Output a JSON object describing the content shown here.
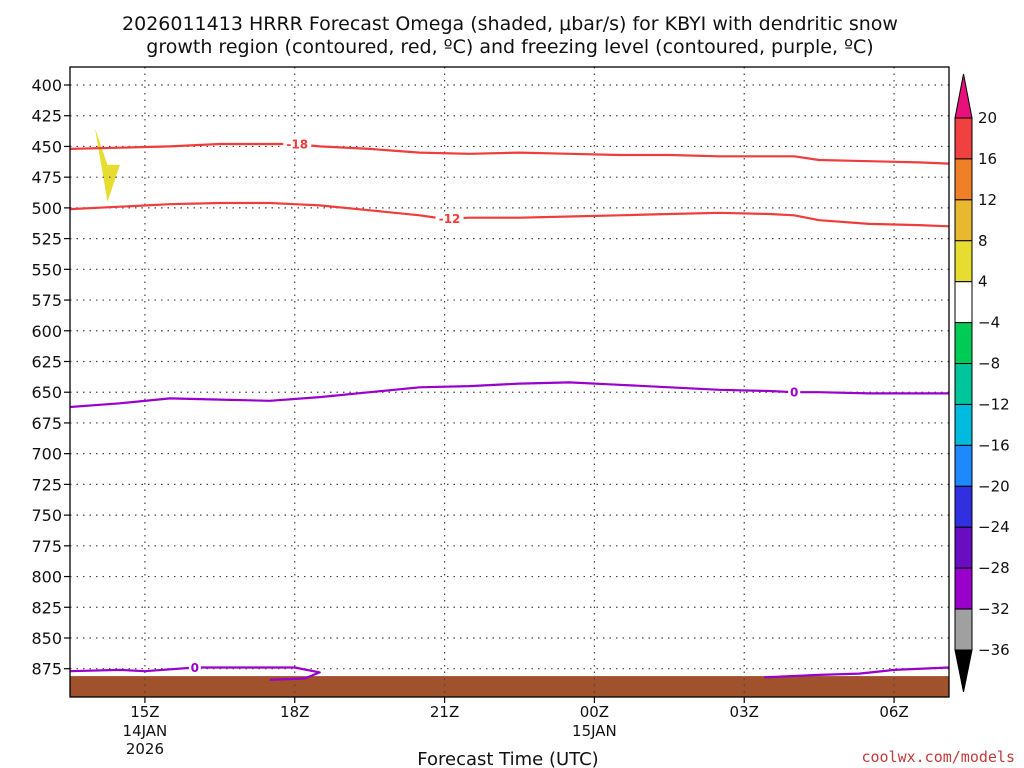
{
  "chart_data": {
    "type": "time-height cross section",
    "title_line1": "2026011413 HRRR Forecast Omega (shaded, μbar/s) for KBYI with dendritic snow",
    "title_line2": "growth region (contoured, red, ºC) and freezing level (contoured, purple, ºC)",
    "xlabel": "Forecast Time (UTC)",
    "credit": "coolwx.com/models",
    "xlim": [
      13.5,
      31.1
    ],
    "ylim": [
      400,
      885
    ],
    "y_ticks": [
      400,
      425,
      450,
      475,
      500,
      525,
      550,
      575,
      600,
      625,
      650,
      675,
      700,
      725,
      750,
      775,
      800,
      825,
      850,
      875
    ],
    "x_ticks": [
      {
        "hour": 15,
        "label": "15Z",
        "sub1": "14JAN",
        "sub2": "2026"
      },
      {
        "hour": 18,
        "label": "18Z",
        "sub1": "",
        "sub2": ""
      },
      {
        "hour": 21,
        "label": "21Z",
        "sub1": "",
        "sub2": ""
      },
      {
        "hour": 24,
        "label": "00Z",
        "sub1": "15JAN",
        "sub2": ""
      },
      {
        "hour": 27,
        "label": "03Z",
        "sub1": "",
        "sub2": ""
      },
      {
        "hour": 30,
        "label": "06Z",
        "sub1": "",
        "sub2": ""
      }
    ],
    "colorbar": {
      "levels": [
        -36,
        -32,
        -28,
        -24,
        -20,
        -16,
        -12,
        -8,
        -4,
        4,
        8,
        12,
        16,
        20
      ],
      "colors": [
        "#a0a0a0",
        "#9900cc",
        "#6a0dc0",
        "#3030e0",
        "#1e88ff",
        "#00bbdd",
        "#00c49a",
        "#00cc55",
        "#ffffff",
        "#e6dd30",
        "#e8b830",
        "#f07f28",
        "#f04040"
      ],
      "under_color": "#000000",
      "over_color": "#e8107a"
    },
    "contours": [
      {
        "name": "dgz-minus18",
        "color": "#f03c3c",
        "label": "-18",
        "label_hour": 18.05,
        "x": [
          13.5,
          14.5,
          15.5,
          16.5,
          17.5,
          18.0,
          18.5,
          19.5,
          20.5,
          21.5,
          22.5,
          23.5,
          24.5,
          25.5,
          26.5,
          27.5,
          28.0,
          28.5,
          29.5,
          30.5,
          31.1
        ],
        "y": [
          452,
          451,
          450,
          448,
          448,
          448,
          450,
          452,
          455,
          456,
          455,
          456,
          457,
          457,
          458,
          458,
          458,
          461,
          462,
          463,
          464
        ]
      },
      {
        "name": "dgz-minus12",
        "color": "#f03c3c",
        "label": "-12",
        "label_hour": 21.1,
        "x": [
          13.5,
          14.5,
          15.5,
          16.5,
          17.5,
          18.0,
          18.5,
          19.5,
          20.5,
          21.0,
          21.5,
          22.5,
          23.5,
          24.5,
          25.5,
          26.5,
          27.5,
          28.0,
          28.5,
          29.5,
          30.5,
          31.1
        ],
        "y": [
          501,
          499,
          497,
          496,
          496,
          497,
          498,
          502,
          506,
          509,
          508,
          508,
          507,
          506,
          505,
          504,
          505,
          506,
          510,
          513,
          514,
          515
        ]
      },
      {
        "name": "freezing-level-upper",
        "color": "#9a00cc",
        "label": "0",
        "label_hour": 28.0,
        "x": [
          13.5,
          14.5,
          15.5,
          16.5,
          17.5,
          18.5,
          19.5,
          20.5,
          21.5,
          22.5,
          23.5,
          24.5,
          25.5,
          26.5,
          27.5,
          28.0,
          28.5,
          29.5,
          30.5,
          31.1
        ],
        "y": [
          662,
          659,
          655,
          656,
          657,
          654,
          650,
          646,
          645,
          643,
          642,
          644,
          646,
          648,
          649,
          650,
          650,
          651,
          651,
          651
        ]
      },
      {
        "name": "freezing-level-lower-left",
        "color": "#9a00cc",
        "label": "0",
        "label_hour": 16.0,
        "x": [
          13.5,
          14.5,
          15.0,
          16.0,
          17.0,
          18.0,
          18.5,
          18.2,
          17.5
        ],
        "y": [
          877,
          876,
          877,
          874,
          874,
          874,
          878,
          883,
          884
        ]
      },
      {
        "name": "freezing-level-lower-right",
        "color": "#9a00cc",
        "label": "",
        "label_hour": null,
        "x": [
          27.4,
          28.5,
          29.3,
          30.0,
          31.1
        ],
        "y": [
          882,
          880,
          879,
          876,
          874
        ]
      }
    ],
    "shading": [
      {
        "name": "omega-positive-area",
        "color": "#e6dd30",
        "value_range": "4-8",
        "x": [
          14.0,
          14.25,
          14.5,
          14.25
        ],
        "y": [
          435,
          465,
          465,
          495
        ]
      },
      {
        "name": "terrain",
        "color": "#a0522d",
        "x_range": [
          13.5,
          31.1
        ],
        "top_level": 881
      }
    ]
  }
}
